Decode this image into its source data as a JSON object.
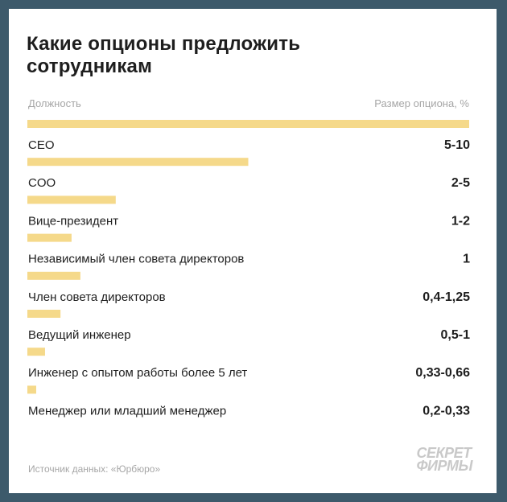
{
  "title": "Какие опционы предложить сотрудникам",
  "column_headers": {
    "left": "Должность",
    "right": "Размер опциона, %"
  },
  "source": "Источник данных: «Юрбюро»",
  "logo": {
    "line1": "СЕКРЕТ",
    "line2": "ФИРМЫ"
  },
  "colors": {
    "background": "#3d5a6b",
    "bar": "#f5d98a",
    "text": "#1e1e1e",
    "muted": "#a6a6a6"
  },
  "chart_data": {
    "type": "bar",
    "orientation": "horizontal",
    "categories": [
      "CEO",
      "COO",
      "Вице-президент",
      "Независимый член совета директоров",
      "Член совета директоров",
      "Ведущий инженер",
      "Инженер с опытом работы более 5 лет",
      "Менеджер или младший менеджер"
    ],
    "value_labels": [
      "5-10",
      "2-5",
      "1-2",
      "1",
      "0,4-1,25",
      "0,5-1",
      "0,33-0,66",
      "0,2-0,33"
    ],
    "values": [
      10,
      5,
      2,
      1,
      1.2,
      0.75,
      0.4,
      0.2
    ],
    "xlim": [
      0,
      10
    ],
    "grid": false,
    "legend": "none"
  }
}
